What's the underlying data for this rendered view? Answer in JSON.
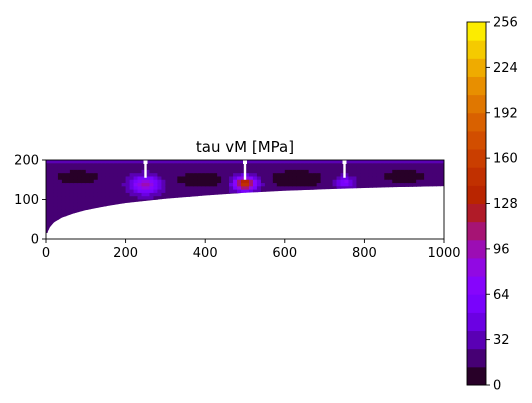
{
  "chart_data": {
    "type": "heatmap",
    "title": "tau vM [MPa]",
    "xlabel": "",
    "ylabel": "",
    "xlim": [
      0,
      1000
    ],
    "ylim": [
      0,
      200
    ],
    "x_ticks": [
      "0",
      "200",
      "400",
      "600",
      "800",
      "1000"
    ],
    "y_ticks": [
      "0",
      "100",
      "200"
    ],
    "grid": false,
    "colormap": "gnuplot",
    "colorbar": {
      "min": 0,
      "max": 256,
      "ticks": [
        "0",
        "32",
        "64",
        "96",
        "128",
        "160",
        "192",
        "224",
        "256"
      ],
      "levels": 20
    },
    "domain_bottom_boundary": {
      "x": [
        0,
        5,
        10,
        20,
        40,
        70,
        100,
        150,
        200,
        300,
        400,
        500,
        600,
        700,
        800,
        900,
        1000
      ],
      "y": [
        0,
        20,
        30,
        42,
        54,
        65,
        73,
        83,
        91,
        102,
        110,
        117,
        122,
        126,
        129,
        132,
        134
      ]
    },
    "base_value": 22,
    "hotspots": [
      {
        "x": 250,
        "y": 137,
        "peak": 100,
        "spread": 32
      },
      {
        "x": 500,
        "y": 140,
        "peak": 152,
        "spread": 27
      },
      {
        "x": 750,
        "y": 143,
        "peak": 70,
        "spread": 22
      }
    ],
    "dark_regions": [
      {
        "x": 80,
        "y": 155,
        "value": 5,
        "spread": 65
      },
      {
        "x": 390,
        "y": 150,
        "value": 4,
        "spread": 70
      },
      {
        "x": 630,
        "y": 152,
        "value": 3,
        "spread": 75
      },
      {
        "x": 900,
        "y": 158,
        "value": 5,
        "spread": 60
      }
    ],
    "notches": [
      {
        "x": 250,
        "y_bottom": 155
      },
      {
        "x": 500,
        "y_bottom": 150
      },
      {
        "x": 750,
        "y_bottom": 155
      }
    ]
  }
}
